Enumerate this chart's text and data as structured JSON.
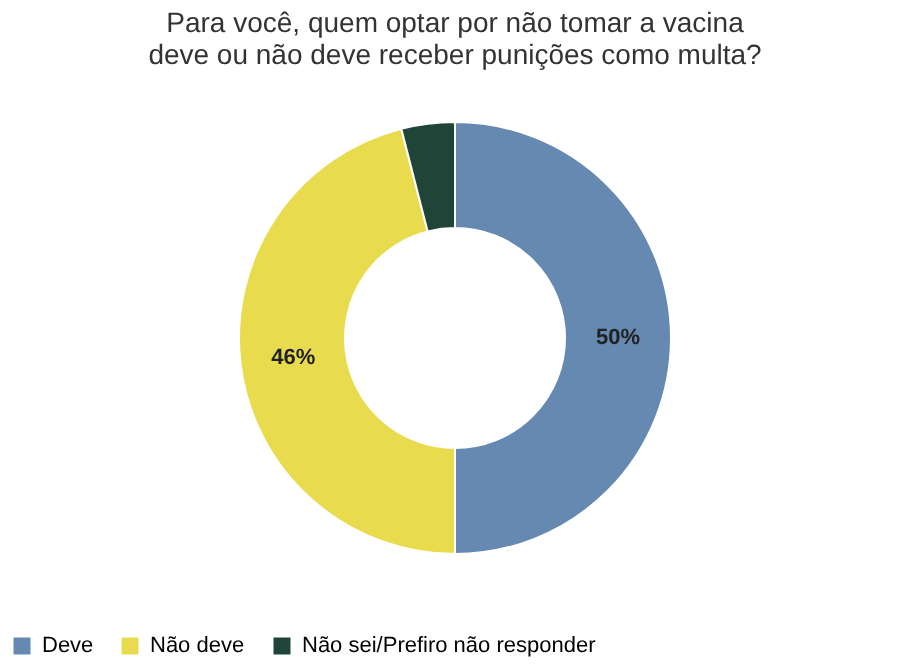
{
  "chart_data": {
    "type": "donut",
    "title": "Para você, quem optar por não tomar a vacina\ndeve ou não deve receber punições como multa?",
    "categories": [
      "Deve",
      "Não deve",
      "Não sei/Prefiro não responder"
    ],
    "values": [
      50,
      46,
      4
    ],
    "colors": [
      "#6589b1",
      "#e8dc4e",
      "#1f4438"
    ],
    "value_labels": [
      "50%",
      "46%",
      null
    ],
    "legend": "bottom"
  }
}
